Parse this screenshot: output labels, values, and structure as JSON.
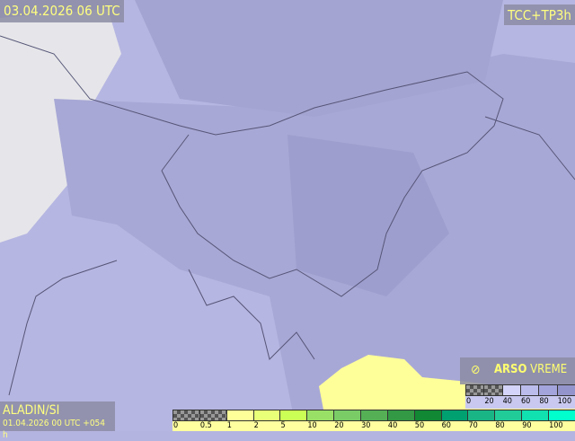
{
  "header": {
    "valid_time": "03.04.2026 06 UTC",
    "parameter": "TCC+TP3h"
  },
  "footer": {
    "model": "ALADIN/SI",
    "run": "01.04.2026 00 UTC +054 h"
  },
  "logo": {
    "brand": "ARSO",
    "product": "VREME",
    "icon": "satellite-icon"
  },
  "precip_legend": {
    "ticks": [
      "0",
      "0.5",
      "1",
      "2",
      "5",
      "10",
      "20",
      "30",
      "40",
      "50",
      "60",
      "70",
      "80",
      "90",
      "100"
    ],
    "colors": [
      "checker",
      "checker",
      "#ffff99",
      "#e8ff77",
      "#ccff55",
      "#99e066",
      "#7acc66",
      "#55b055",
      "#339944",
      "#118833",
      "#00a070",
      "#1ab585",
      "#22cc99",
      "#11e0b0",
      "#00ffcc"
    ]
  },
  "cloud_legend": {
    "ticks": [
      "0",
      "20",
      "40",
      "60",
      "80",
      "100"
    ],
    "colors": [
      "checker",
      "checker",
      "#d4d4fa",
      "#bcbcec",
      "#a4a4dc",
      "#9494cc"
    ]
  },
  "colors": {
    "label_text": "#ffff80",
    "label_bg": "#8c8ca5",
    "land_clear": "#e8e8ec",
    "cloud": "#a8a8d8",
    "border": "#555577"
  }
}
